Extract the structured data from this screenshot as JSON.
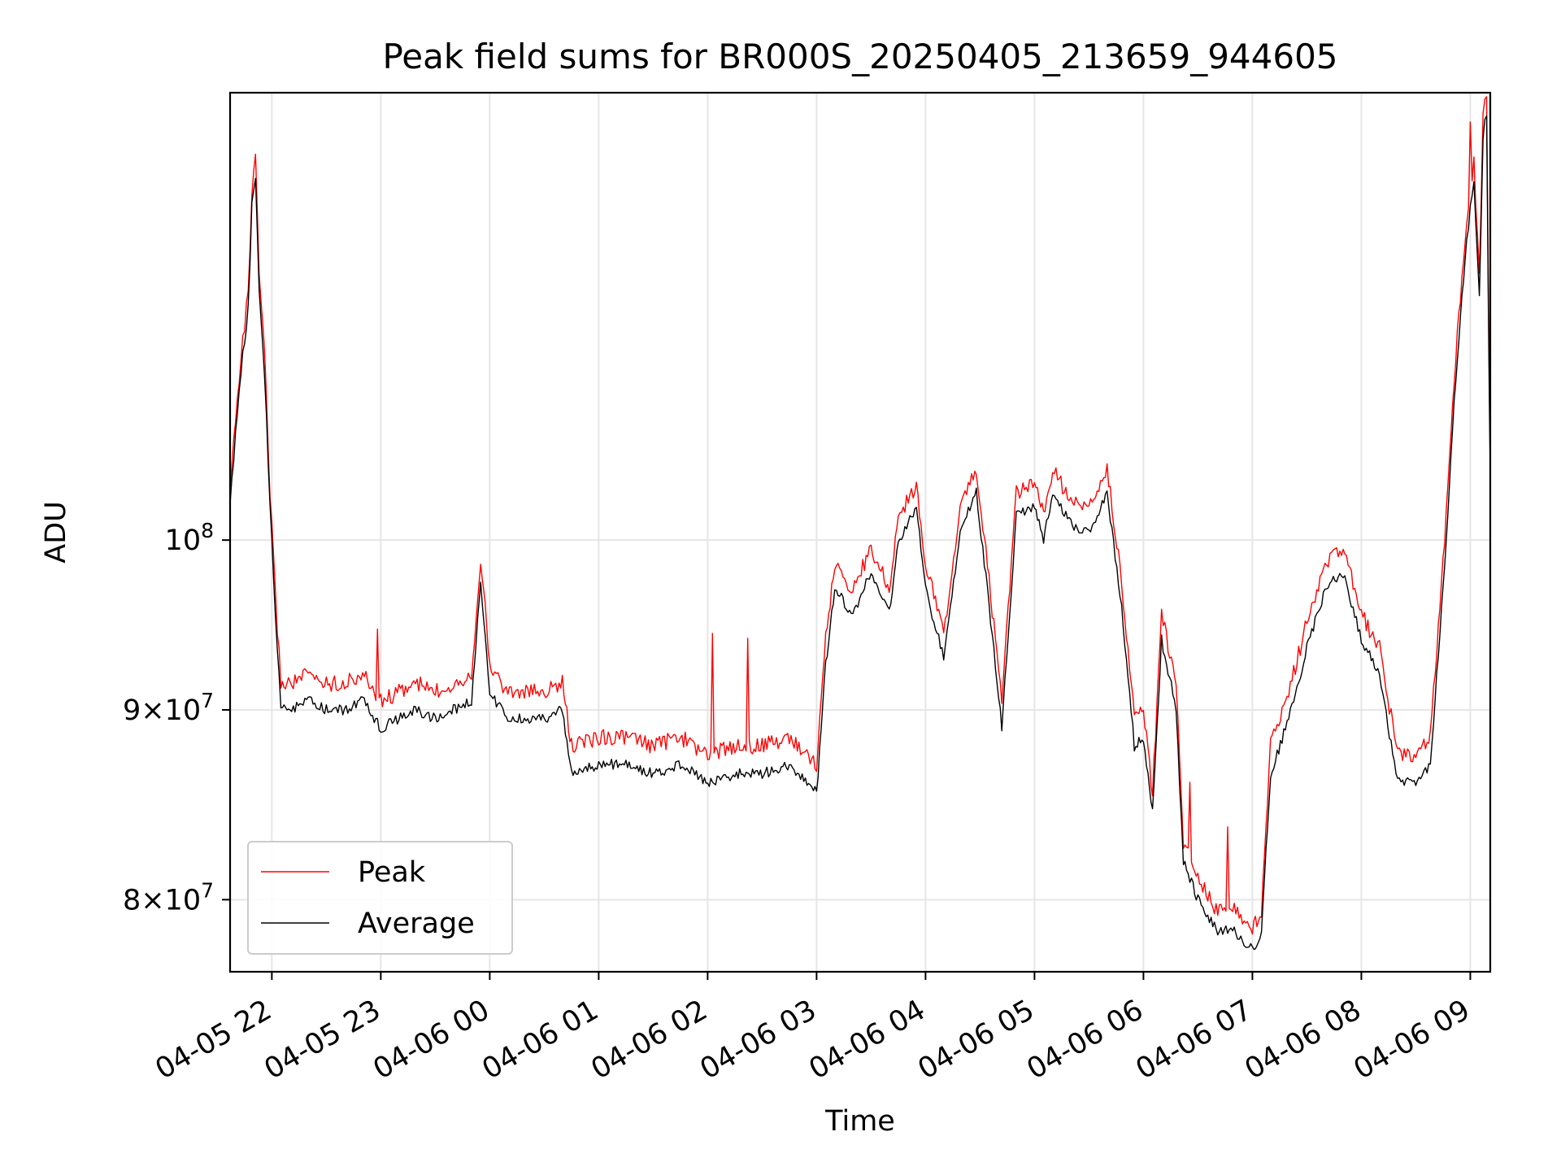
{
  "chart_data": {
    "type": "line",
    "title": "Peak field sums for BR000S_20250405_213659_944605",
    "xlabel": "Time",
    "ylabel": "ADU",
    "y_scale": "log",
    "ylim": [
      76500000,
      132000000
    ],
    "xlim": [
      "2025-04-05 21:37",
      "2025-04-06 09:11"
    ],
    "grid": true,
    "legend_position": "lower-left",
    "x_ticks": [
      {
        "t": "2025-04-05 22:00",
        "label": "04-05 22"
      },
      {
        "t": "2025-04-05 23:00",
        "label": "04-05 23"
      },
      {
        "t": "2025-04-06 00:00",
        "label": "04-06 00"
      },
      {
        "t": "2025-04-06 01:00",
        "label": "04-06 01"
      },
      {
        "t": "2025-04-06 02:00",
        "label": "04-06 02"
      },
      {
        "t": "2025-04-06 03:00",
        "label": "04-06 03"
      },
      {
        "t": "2025-04-06 04:00",
        "label": "04-06 04"
      },
      {
        "t": "2025-04-06 05:00",
        "label": "04-06 05"
      },
      {
        "t": "2025-04-06 06:00",
        "label": "04-06 06"
      },
      {
        "t": "2025-04-06 07:00",
        "label": "04-06 07"
      },
      {
        "t": "2025-04-06 08:00",
        "label": "04-06 08"
      },
      {
        "t": "2025-04-06 09:00",
        "label": "04-06 09"
      }
    ],
    "y_ticks": [
      {
        "value": 80000000,
        "base": "8",
        "exp": "7"
      },
      {
        "value": 90000000,
        "base": "9",
        "exp": "7"
      },
      {
        "value": 100000000,
        "base": "",
        "exp": "8"
      }
    ],
    "series": [
      {
        "name": "Peak",
        "color": "#ff0000",
        "points": [
          [
            "2025-04-05 21:37",
            103000000
          ],
          [
            "2025-04-05 21:40",
            108000000
          ],
          [
            "2025-04-05 21:43",
            112000000
          ],
          [
            "2025-04-05 21:47",
            116500000
          ],
          [
            "2025-04-05 21:49",
            124000000
          ],
          [
            "2025-04-05 21:51",
            126500000
          ],
          [
            "2025-04-05 21:53",
            118000000
          ],
          [
            "2025-04-05 21:56",
            112000000
          ],
          [
            "2025-04-05 21:59",
            103000000
          ],
          [
            "2025-04-05 22:02",
            96500000
          ],
          [
            "2025-04-05 22:05",
            91500000
          ],
          [
            "2025-04-05 22:10",
            91500000
          ],
          [
            "2025-04-05 22:20",
            92000000
          ],
          [
            "2025-04-05 22:30",
            91500000
          ],
          [
            "2025-04-05 22:40",
            91500000
          ],
          [
            "2025-04-05 22:50",
            92000000
          ],
          [
            "2025-04-05 23:00",
            90500000
          ],
          [
            "2025-04-05 23:10",
            91000000
          ],
          [
            "2025-04-05 23:20",
            91500000
          ],
          [
            "2025-04-05 23:30",
            91000000
          ],
          [
            "2025-04-05 23:40",
            91500000
          ],
          [
            "2025-04-05 23:50",
            92000000
          ],
          [
            "2025-04-05 23:55",
            99000000
          ],
          [
            "2025-04-06 00:00",
            92500000
          ],
          [
            "2025-04-06 00:10",
            91000000
          ],
          [
            "2025-04-06 00:20",
            91000000
          ],
          [
            "2025-04-06 00:30",
            91000000
          ],
          [
            "2025-04-06 00:40",
            91500000
          ],
          [
            "2025-04-06 00:45",
            88000000
          ],
          [
            "2025-04-06 01:00",
            88500000
          ],
          [
            "2025-04-06 01:15",
            88500000
          ],
          [
            "2025-04-06 01:30",
            88000000
          ],
          [
            "2025-04-06 01:45",
            88500000
          ],
          [
            "2025-04-06 02:00",
            87500000
          ],
          [
            "2025-04-06 02:15",
            88000000
          ],
          [
            "2025-04-06 02:30",
            88000000
          ],
          [
            "2025-04-06 02:45",
            88500000
          ],
          [
            "2025-04-06 03:00",
            87000000
          ],
          [
            "2025-04-06 03:05",
            94000000
          ],
          [
            "2025-04-06 03:10",
            98500000
          ],
          [
            "2025-04-06 03:20",
            97000000
          ],
          [
            "2025-04-06 03:30",
            99500000
          ],
          [
            "2025-04-06 03:40",
            97000000
          ],
          [
            "2025-04-06 03:45",
            101500000
          ],
          [
            "2025-04-06 03:55",
            103500000
          ],
          [
            "2025-04-06 04:00",
            98500000
          ],
          [
            "2025-04-06 04:10",
            94500000
          ],
          [
            "2025-04-06 04:20",
            102500000
          ],
          [
            "2025-04-06 04:28",
            104500000
          ],
          [
            "2025-04-06 04:35",
            97500000
          ],
          [
            "2025-04-06 04:42",
            90500000
          ],
          [
            "2025-04-06 04:50",
            103000000
          ],
          [
            "2025-04-06 05:00",
            103500000
          ],
          [
            "2025-04-06 05:05",
            101500000
          ],
          [
            "2025-04-06 05:10",
            104500000
          ],
          [
            "2025-04-06 05:20",
            102500000
          ],
          [
            "2025-04-06 05:30",
            102000000
          ],
          [
            "2025-04-06 05:40",
            104500000
          ],
          [
            "2025-04-06 05:48",
            97500000
          ],
          [
            "2025-04-06 05:55",
            89500000
          ],
          [
            "2025-04-06 06:00",
            90000000
          ],
          [
            "2025-04-06 06:05",
            85500000
          ],
          [
            "2025-04-06 06:10",
            95500000
          ],
          [
            "2025-04-06 06:18",
            91500000
          ],
          [
            "2025-04-06 06:22",
            83000000
          ],
          [
            "2025-04-06 06:30",
            81000000
          ],
          [
            "2025-04-06 06:40",
            79500000
          ],
          [
            "2025-04-06 06:50",
            79500000
          ],
          [
            "2025-04-06 07:00",
            78500000
          ],
          [
            "2025-04-06 07:05",
            79500000
          ],
          [
            "2025-04-06 07:10",
            88000000
          ],
          [
            "2025-04-06 07:20",
            91000000
          ],
          [
            "2025-04-06 07:30",
            95000000
          ],
          [
            "2025-04-06 07:40",
            98500000
          ],
          [
            "2025-04-06 07:50",
            99500000
          ],
          [
            "2025-04-06 08:00",
            95500000
          ],
          [
            "2025-04-06 08:10",
            93500000
          ],
          [
            "2025-04-06 08:20",
            87500000
          ],
          [
            "2025-04-06 08:30",
            87500000
          ],
          [
            "2025-04-06 08:38",
            88500000
          ],
          [
            "2025-04-06 08:45",
            98500000
          ],
          [
            "2025-04-06 08:52",
            112000000
          ],
          [
            "2025-04-06 08:58",
            122000000
          ],
          [
            "2025-04-06 09:02",
            126500000
          ],
          [
            "2025-04-06 09:05",
            118000000
          ],
          [
            "2025-04-06 09:07",
            130000000
          ],
          [
            "2025-04-06 09:09",
            132000000
          ],
          [
            "2025-04-06 09:10",
            116000000
          ],
          [
            "2025-04-06 09:11",
            105000000
          ]
        ]
      },
      {
        "name": "Average",
        "color": "#000000",
        "points": [
          [
            "2025-04-05 21:37",
            102000000
          ],
          [
            "2025-04-05 21:40",
            107000000
          ],
          [
            "2025-04-05 21:43",
            111000000
          ],
          [
            "2025-04-05 21:47",
            115500000
          ],
          [
            "2025-04-05 21:49",
            123000000
          ],
          [
            "2025-04-05 21:51",
            125500000
          ],
          [
            "2025-04-05 21:53",
            117000000
          ],
          [
            "2025-04-05 21:56",
            111000000
          ],
          [
            "2025-04-05 21:59",
            102000000
          ],
          [
            "2025-04-05 22:02",
            95500000
          ],
          [
            "2025-04-05 22:05",
            90000000
          ],
          [
            "2025-04-05 22:10",
            90000000
          ],
          [
            "2025-04-05 22:20",
            90500000
          ],
          [
            "2025-04-05 22:30",
            90000000
          ],
          [
            "2025-04-05 22:40",
            90000000
          ],
          [
            "2025-04-05 22:50",
            90500000
          ],
          [
            "2025-04-05 23:00",
            89000000
          ],
          [
            "2025-04-05 23:10",
            89500000
          ],
          [
            "2025-04-05 23:20",
            90000000
          ],
          [
            "2025-04-05 23:30",
            89500000
          ],
          [
            "2025-04-05 23:40",
            90000000
          ],
          [
            "2025-04-05 23:50",
            90500000
          ],
          [
            "2025-04-05 23:55",
            97500000
          ],
          [
            "2025-04-06 00:00",
            91000000
          ],
          [
            "2025-04-06 00:10",
            89500000
          ],
          [
            "2025-04-06 00:20",
            89500000
          ],
          [
            "2025-04-06 00:30",
            89500000
          ],
          [
            "2025-04-06 00:40",
            90000000
          ],
          [
            "2025-04-06 00:45",
            86500000
          ],
          [
            "2025-04-06 01:00",
            87000000
          ],
          [
            "2025-04-06 01:15",
            87000000
          ],
          [
            "2025-04-06 01:30",
            86500000
          ],
          [
            "2025-04-06 01:45",
            87000000
          ],
          [
            "2025-04-06 02:00",
            86000000
          ],
          [
            "2025-04-06 02:15",
            86500000
          ],
          [
            "2025-04-06 02:30",
            86500000
          ],
          [
            "2025-04-06 02:45",
            87000000
          ],
          [
            "2025-04-06 03:00",
            85500000
          ],
          [
            "2025-04-06 03:05",
            92500000
          ],
          [
            "2025-04-06 03:10",
            97000000
          ],
          [
            "2025-04-06 03:20",
            95500000
          ],
          [
            "2025-04-06 03:30",
            98000000
          ],
          [
            "2025-04-06 03:40",
            95500000
          ],
          [
            "2025-04-06 03:45",
            100000000
          ],
          [
            "2025-04-06 03:55",
            102000000
          ],
          [
            "2025-04-06 04:00",
            97000000
          ],
          [
            "2025-04-06 04:10",
            93000000
          ],
          [
            "2025-04-06 04:20",
            101000000
          ],
          [
            "2025-04-06 04:28",
            103000000
          ],
          [
            "2025-04-06 04:35",
            96000000
          ],
          [
            "2025-04-06 04:42",
            89000000
          ],
          [
            "2025-04-06 04:50",
            101500000
          ],
          [
            "2025-04-06 05:00",
            102000000
          ],
          [
            "2025-04-06 05:05",
            100000000
          ],
          [
            "2025-04-06 05:10",
            103000000
          ],
          [
            "2025-04-06 05:20",
            101000000
          ],
          [
            "2025-04-06 05:30",
            100500000
          ],
          [
            "2025-04-06 05:40",
            103000000
          ],
          [
            "2025-04-06 05:48",
            96000000
          ],
          [
            "2025-04-06 05:55",
            88000000
          ],
          [
            "2025-04-06 06:00",
            88500000
          ],
          [
            "2025-04-06 06:05",
            84500000
          ],
          [
            "2025-04-06 06:10",
            94000000
          ],
          [
            "2025-04-06 06:18",
            90000000
          ],
          [
            "2025-04-06 06:22",
            82000000
          ],
          [
            "2025-04-06 06:30",
            80000000
          ],
          [
            "2025-04-06 06:40",
            78500000
          ],
          [
            "2025-04-06 06:50",
            78500000
          ],
          [
            "2025-04-06 07:00",
            77500000
          ],
          [
            "2025-04-06 07:05",
            78500000
          ],
          [
            "2025-04-06 07:10",
            86500000
          ],
          [
            "2025-04-06 07:20",
            89500000
          ],
          [
            "2025-04-06 07:30",
            93500000
          ],
          [
            "2025-04-06 07:40",
            97000000
          ],
          [
            "2025-04-06 07:50",
            98000000
          ],
          [
            "2025-04-06 08:00",
            94000000
          ],
          [
            "2025-04-06 08:10",
            92000000
          ],
          [
            "2025-04-06 08:20",
            86000000
          ],
          [
            "2025-04-06 08:30",
            86000000
          ],
          [
            "2025-04-06 08:38",
            87000000
          ],
          [
            "2025-04-06 08:45",
            97000000
          ],
          [
            "2025-04-06 08:52",
            110500000
          ],
          [
            "2025-04-06 08:58",
            120500000
          ],
          [
            "2025-04-06 09:02",
            125000000
          ],
          [
            "2025-04-06 09:05",
            116500000
          ],
          [
            "2025-04-06 09:07",
            128500000
          ],
          [
            "2025-04-06 09:09",
            130500000
          ],
          [
            "2025-04-06 09:10",
            114500000
          ],
          [
            "2025-04-06 09:11",
            104000000
          ]
        ]
      }
    ]
  }
}
